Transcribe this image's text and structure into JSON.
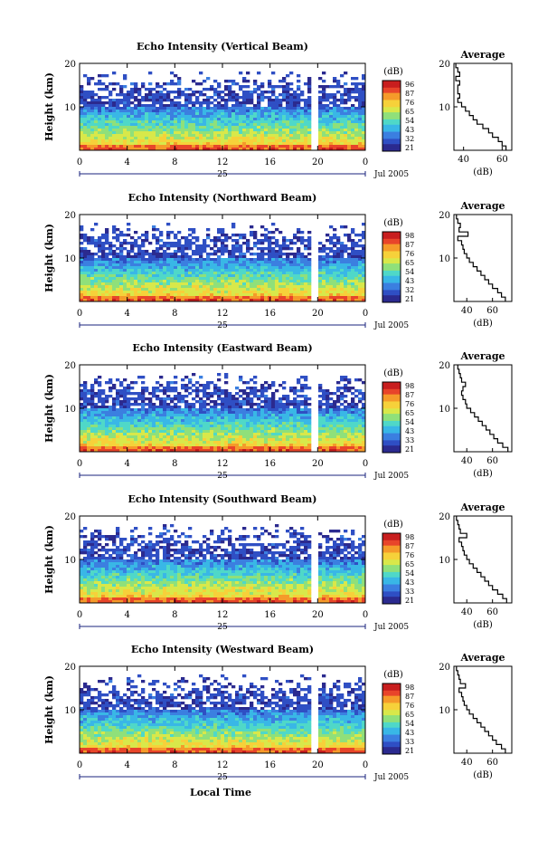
{
  "figure": {
    "common_xlabel": "Local Time",
    "date_label": "Jul 2005",
    "day_label": "25",
    "average_title": "Average",
    "average_xlabel": "(dB)",
    "colorbar_title": "(dB)",
    "ylabel": "Height (km)"
  },
  "colors": {
    "scale": [
      "#2b2a8f",
      "#2f4fc4",
      "#3b7fe0",
      "#39b7e6",
      "#4fd8c8",
      "#8fe07a",
      "#d8e84a",
      "#f6d13a",
      "#f59a2a",
      "#e8452a",
      "#c81e1e"
    ],
    "gap": "#ffffff"
  },
  "chart_data": [
    {
      "type": "heatmap",
      "title": "Echo Intensity (Vertical Beam)",
      "xlabel": "",
      "ylabel": "Height (km)",
      "xticks": [
        "0",
        "4",
        "8",
        "12",
        "16",
        "20",
        "0"
      ],
      "yticks": [
        "20",
        "10"
      ],
      "colorbar_ticks": [
        "96",
        "87",
        "76",
        "65",
        "54",
        "43",
        "32",
        "21"
      ],
      "average": {
        "title": "Average",
        "xlabel": "(dB)",
        "xticks": [
          "40",
          "60"
        ],
        "yticks": [
          "20",
          "10"
        ],
        "xlim": [
          35,
          65
        ],
        "profile_db": [
          62,
          60,
          58,
          55,
          53,
          50,
          47,
          45,
          43,
          41,
          39,
          37,
          38,
          37,
          37,
          38,
          36,
          38,
          37,
          36
        ]
      }
    },
    {
      "type": "heatmap",
      "title": "Echo Intensity (Northward Beam)",
      "xlabel": "",
      "ylabel": "Height (km)",
      "xticks": [
        "0",
        "4",
        "8",
        "12",
        "16",
        "20",
        "0"
      ],
      "yticks": [
        "20",
        "10"
      ],
      "colorbar_ticks": [
        "98",
        "87",
        "76",
        "65",
        "54",
        "43",
        "32",
        "21"
      ],
      "average": {
        "title": "Average",
        "xlabel": "(dB)",
        "xticks": [
          "40",
          "60"
        ],
        "yticks": [
          "20",
          "10"
        ],
        "xlim": [
          30,
          75
        ],
        "profile_db": [
          70,
          67,
          64,
          60,
          57,
          54,
          51,
          48,
          45,
          42,
          40,
          38,
          37,
          36,
          33,
          41,
          34,
          35,
          33,
          32
        ]
      }
    },
    {
      "type": "heatmap",
      "title": "Echo Intensity (Eastward Beam)",
      "xlabel": "",
      "ylabel": "Height (km)",
      "xticks": [
        "0",
        "4",
        "8",
        "12",
        "16",
        "20",
        "0"
      ],
      "yticks": [
        "20",
        "10"
      ],
      "colorbar_ticks": [
        "98",
        "87",
        "76",
        "65",
        "54",
        "43",
        "33",
        "21"
      ],
      "average": {
        "title": "Average",
        "xlabel": "(dB)",
        "xticks": [
          "40",
          "60"
        ],
        "yticks": [
          "20",
          "10"
        ],
        "xlim": [
          30,
          75
        ],
        "profile_db": [
          72,
          68,
          64,
          61,
          58,
          55,
          52,
          49,
          46,
          43,
          40,
          39,
          37,
          36,
          37,
          39,
          36,
          35,
          34,
          33
        ]
      }
    },
    {
      "type": "heatmap",
      "title": "Echo Intensity (Southward Beam)",
      "xlabel": "",
      "ylabel": "Height (km)",
      "xticks": [
        "0",
        "4",
        "8",
        "12",
        "16",
        "20",
        "0"
      ],
      "yticks": [
        "20",
        "10"
      ],
      "colorbar_ticks": [
        "98",
        "87",
        "76",
        "65",
        "54",
        "43",
        "33",
        "21"
      ],
      "average": {
        "title": "Average",
        "xlabel": "(dB)",
        "xticks": [
          "40",
          "60"
        ],
        "yticks": [
          "20",
          "10"
        ],
        "xlim": [
          30,
          75
        ],
        "profile_db": [
          71,
          68,
          64,
          60,
          57,
          54,
          51,
          48,
          45,
          42,
          40,
          38,
          37,
          36,
          34,
          40,
          35,
          34,
          33,
          32
        ]
      }
    },
    {
      "type": "heatmap",
      "title": "Echo Intensity (Westward Beam)",
      "xlabel": "Local Time",
      "ylabel": "Height (km)",
      "xticks": [
        "0",
        "4",
        "8",
        "12",
        "16",
        "20",
        "0"
      ],
      "yticks": [
        "20",
        "10"
      ],
      "colorbar_ticks": [
        "98",
        "87",
        "76",
        "65",
        "54",
        "43",
        "33",
        "21"
      ],
      "average": {
        "title": "Average",
        "xlabel": "(dB)",
        "xticks": [
          "40",
          "60"
        ],
        "yticks": [
          "20",
          "10"
        ],
        "xlim": [
          30,
          75
        ],
        "profile_db": [
          70,
          67,
          63,
          60,
          57,
          54,
          51,
          48,
          45,
          42,
          40,
          38,
          37,
          36,
          34,
          39,
          35,
          34,
          33,
          32
        ]
      }
    }
  ]
}
